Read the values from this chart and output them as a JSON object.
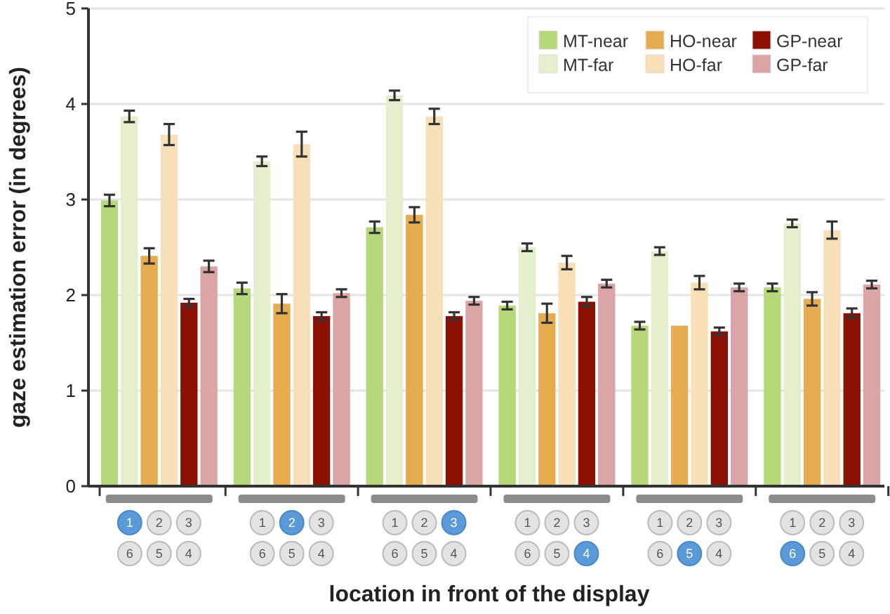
{
  "chart_data": {
    "type": "bar",
    "xlabel": "location in front of the display",
    "ylabel": "gaze estimation error (in degrees)",
    "categories": [
      null,
      null,
      null,
      null,
      null,
      null
    ],
    "series": [
      {
        "name": "MT-near",
        "color": "#b5d97a",
        "values": [
          2.99,
          2.07,
          2.71,
          1.89,
          1.68,
          2.08
        ],
        "errors": [
          0.06,
          0.06,
          0.06,
          0.04,
          0.04,
          0.04
        ]
      },
      {
        "name": "MT-far",
        "color": "#e4efce",
        "values": [
          3.87,
          3.4,
          4.09,
          2.5,
          2.46,
          2.75
        ],
        "errors": [
          0.06,
          0.05,
          0.05,
          0.04,
          0.04,
          0.04
        ]
      },
      {
        "name": "HO-near",
        "color": "#e6ad50",
        "values": [
          2.41,
          1.91,
          2.84,
          1.81,
          1.68,
          1.96
        ],
        "errors": [
          0.08,
          0.1,
          0.08,
          0.1,
          null,
          0.07
        ]
      },
      {
        "name": "HO-far",
        "color": "#f7dfb8",
        "values": [
          3.68,
          3.58,
          3.87,
          2.34,
          2.13,
          2.68
        ],
        "errors": [
          0.11,
          0.13,
          0.08,
          0.07,
          0.07,
          0.09
        ]
      },
      {
        "name": "GP-near",
        "color": "#8b1000",
        "values": [
          1.92,
          1.78,
          1.78,
          1.93,
          1.62,
          1.81
        ],
        "errors": [
          0.04,
          0.04,
          0.04,
          0.05,
          0.04,
          0.05
        ]
      },
      {
        "name": "GP-far",
        "color": "#dba5a5",
        "values": [
          2.3,
          2.02,
          1.94,
          2.12,
          2.08,
          2.11
        ],
        "errors": [
          0.06,
          0.04,
          0.04,
          0.04,
          0.04,
          0.04
        ]
      }
    ],
    "annotations": [
      "1",
      "2",
      "3",
      "6",
      "5",
      "4"
    ],
    "ylim": [
      0,
      5
    ],
    "yticks": [
      0,
      1,
      2,
      3,
      4,
      5
    ],
    "grid": "y",
    "legend": "top right"
  }
}
